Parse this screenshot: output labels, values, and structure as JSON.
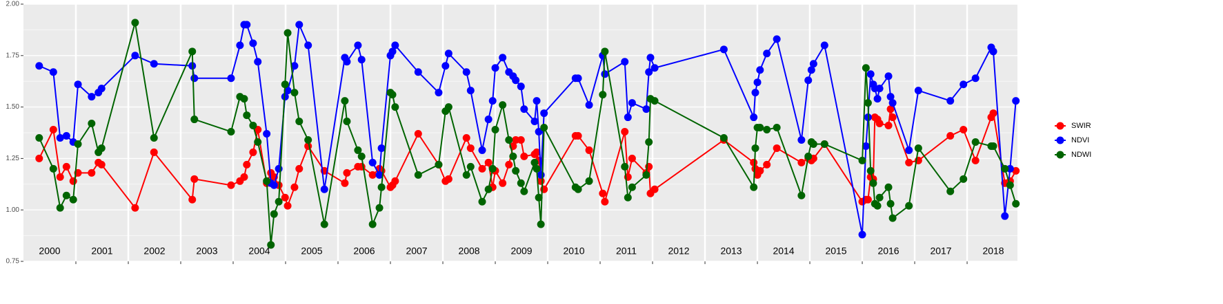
{
  "chart_data": {
    "type": "line",
    "x": [
      2000.3,
      2000.57,
      2000.7,
      2000.82,
      2000.95,
      2001.04,
      2001.3,
      2001.43,
      2001.49,
      2002.13,
      2002.49,
      2003.22,
      2003.26,
      2003.96,
      2004.13,
      2004.21,
      2004.26,
      2004.38,
      2004.47,
      2004.64,
      2004.72,
      2004.78,
      2004.87,
      2004.99,
      2005.04,
      2005.17,
      2005.26,
      2005.43,
      2005.74,
      2006.13,
      2006.17,
      2006.38,
      2006.45,
      2006.66,
      2006.79,
      2006.83,
      2007.0,
      2007.04,
      2007.09,
      2007.53,
      2007.92,
      2008.05,
      2008.11,
      2008.45,
      2008.53,
      2008.75,
      2008.87,
      2008.95,
      2009.0,
      2009.14,
      2009.26,
      2009.34,
      2009.39,
      2009.49,
      2009.55,
      2009.75,
      2009.79,
      2009.83,
      2009.87,
      2009.93,
      2010.53,
      2010.58,
      2010.79,
      2011.05,
      2011.09,
      2011.47,
      2011.53,
      2011.61,
      2011.88,
      2011.93,
      2011.96,
      2012.04,
      2013.36,
      2013.93,
      2013.96,
      2014.0,
      2014.05,
      2014.18,
      2014.37,
      2014.84,
      2014.97,
      2015.03,
      2015.07,
      2015.28,
      2016.0,
      2016.07,
      2016.11,
      2016.16,
      2016.21,
      2016.24,
      2016.29,
      2016.33,
      2016.5,
      2016.54,
      2016.58,
      2016.89,
      2017.07,
      2017.68,
      2017.93,
      2018.16,
      2018.46,
      2018.5,
      2018.72,
      2018.82,
      2018.93
    ],
    "series": [
      {
        "name": "SWIR",
        "color": "#ff0000",
        "values": [
          1.25,
          1.39,
          1.16,
          1.21,
          1.14,
          1.18,
          1.18,
          1.23,
          1.22,
          1.01,
          1.28,
          1.05,
          1.15,
          1.12,
          1.14,
          1.16,
          1.22,
          1.28,
          1.39,
          1.13,
          1.18,
          1.16,
          1.12,
          1.06,
          1.02,
          1.11,
          1.2,
          1.31,
          1.19,
          1.13,
          1.18,
          1.21,
          1.21,
          1.17,
          1.2,
          1.19,
          1.11,
          1.12,
          1.14,
          1.37,
          1.22,
          1.14,
          1.15,
          1.35,
          1.3,
          1.2,
          1.23,
          1.11,
          1.19,
          1.13,
          1.22,
          1.31,
          1.34,
          1.34,
          1.26,
          1.27,
          1.28,
          1.24,
          1.14,
          1.1,
          1.36,
          1.36,
          1.29,
          1.08,
          1.04,
          1.38,
          1.16,
          1.25,
          1.18,
          1.21,
          1.08,
          1.1,
          1.34,
          1.23,
          1.2,
          1.17,
          1.19,
          1.22,
          1.3,
          1.23,
          1.25,
          1.24,
          1.25,
          1.32,
          1.04,
          1.05,
          1.05,
          1.16,
          1.15,
          1.45,
          1.44,
          1.42,
          1.41,
          1.49,
          1.45,
          1.23,
          1.24,
          1.36,
          1.39,
          1.24,
          1.45,
          1.47,
          1.13,
          1.14,
          1.19
        ]
      },
      {
        "name": "NDVI",
        "color": "#0000ff",
        "values": [
          1.7,
          1.67,
          1.35,
          1.36,
          1.33,
          1.61,
          1.55,
          1.57,
          1.59,
          1.75,
          1.71,
          1.7,
          1.64,
          1.64,
          1.8,
          1.9,
          1.9,
          1.81,
          1.72,
          1.37,
          1.13,
          1.12,
          1.2,
          1.55,
          1.58,
          1.7,
          1.9,
          1.8,
          1.1,
          1.74,
          1.72,
          1.8,
          1.73,
          1.23,
          1.17,
          1.3,
          1.75,
          1.77,
          1.8,
          1.67,
          1.57,
          1.7,
          1.76,
          1.67,
          1.58,
          1.29,
          1.44,
          1.53,
          1.69,
          1.74,
          1.67,
          1.65,
          1.63,
          1.6,
          1.49,
          1.43,
          1.53,
          1.38,
          1.17,
          1.47,
          1.64,
          1.64,
          1.51,
          1.75,
          1.66,
          1.72,
          1.45,
          1.52,
          1.49,
          1.67,
          1.74,
          1.69,
          1.78,
          1.45,
          1.57,
          1.62,
          1.68,
          1.76,
          1.83,
          1.34,
          1.63,
          1.68,
          1.71,
          1.8,
          0.88,
          1.31,
          1.45,
          1.66,
          1.61,
          1.59,
          1.54,
          1.59,
          1.65,
          1.55,
          1.52,
          1.29,
          1.58,
          1.53,
          1.61,
          1.64,
          1.79,
          1.77,
          0.97,
          1.2,
          1.53
        ]
      },
      {
        "name": "NDWI",
        "color": "#006400",
        "values": [
          1.35,
          1.2,
          1.01,
          1.07,
          1.05,
          1.32,
          1.42,
          1.28,
          1.3,
          1.91,
          1.35,
          1.77,
          1.44,
          1.38,
          1.55,
          1.54,
          1.46,
          1.41,
          1.33,
          1.14,
          0.83,
          0.98,
          1.04,
          1.61,
          1.86,
          1.57,
          1.43,
          1.34,
          0.93,
          1.53,
          1.43,
          1.29,
          1.26,
          0.93,
          1.01,
          1.11,
          1.57,
          1.56,
          1.5,
          1.17,
          1.22,
          1.48,
          1.5,
          1.17,
          1.21,
          1.04,
          1.1,
          1.2,
          1.39,
          1.51,
          1.34,
          1.26,
          1.19,
          1.13,
          1.09,
          1.23,
          1.2,
          1.06,
          0.93,
          1.4,
          1.11,
          1.1,
          1.14,
          1.56,
          1.77,
          1.21,
          1.06,
          1.11,
          1.17,
          1.33,
          1.54,
          1.53,
          1.35,
          1.11,
          1.3,
          1.4,
          1.4,
          1.39,
          1.4,
          1.07,
          1.26,
          1.33,
          1.32,
          1.32,
          1.24,
          1.69,
          1.52,
          1.19,
          1.13,
          1.03,
          1.02,
          1.06,
          1.11,
          1.03,
          0.96,
          1.02,
          1.3,
          1.09,
          1.15,
          1.33,
          1.31,
          1.31,
          1.2,
          1.12,
          1.03
        ]
      }
    ],
    "xlim": [
      2000,
      2018.96
    ],
    "xticks": [
      2001,
      2002,
      2003,
      2004,
      2005,
      2006,
      2007,
      2008,
      2009,
      2010,
      2011,
      2012,
      2013,
      2014,
      2015,
      2016,
      2017,
      2018
    ],
    "year_labels": [
      2000,
      2001,
      2002,
      2003,
      2004,
      2005,
      2006,
      2007,
      2008,
      2009,
      2010,
      2011,
      2012,
      2013,
      2014,
      2015,
      2016,
      2017,
      2018
    ],
    "ylim": [
      0.75,
      2.0
    ],
    "yticks": [
      {
        "value": 0.75,
        "label": "0.75"
      },
      {
        "value": 1.0,
        "label": "1.00"
      },
      {
        "value": 1.25,
        "label": "1.25"
      },
      {
        "value": 1.5,
        "label": "1.50"
      },
      {
        "value": 1.75,
        "label": "1.75"
      },
      {
        "value": 2.0,
        "label": "2.00"
      }
    ],
    "grid": true,
    "legend": "right"
  }
}
